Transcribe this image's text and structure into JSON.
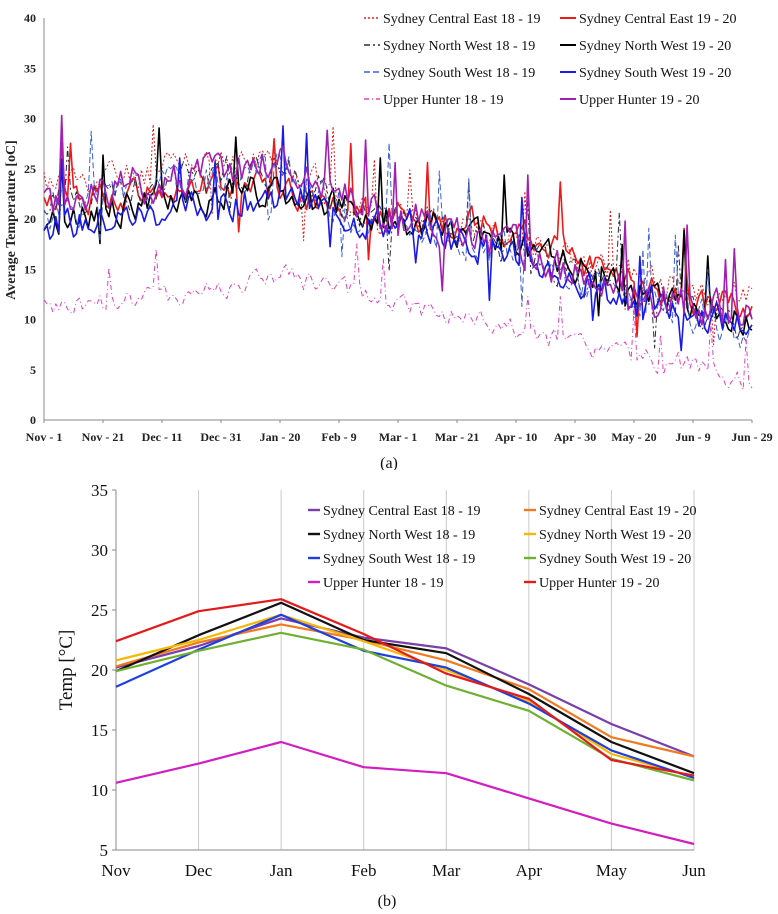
{
  "chart_data": [
    {
      "type": "line",
      "caption": "(a)",
      "ylabel": "Average Temperature [oC]",
      "xlabel": "",
      "ylim": [
        0,
        40
      ],
      "yticks": [
        "0",
        "5",
        "10",
        "15",
        "20",
        "25",
        "30",
        "35",
        "40"
      ],
      "x_tick_labels": [
        "Nov - 1",
        "Nov - 21",
        "Dec - 11",
        "Dec - 31",
        "Jan - 20",
        "Feb - 9",
        "Mar - 1",
        "Mar - 21",
        "Apr - 10",
        "Apr - 30",
        "May - 20",
        "Jun - 9",
        "Jun - 29"
      ],
      "n_days": 241,
      "legend": "top-right",
      "series": [
        {
          "name": "Sydney Central East 18 - 19",
          "color": "#e02020",
          "dash": "2,2",
          "width": 1,
          "trend": [
            [
              0,
              23.5
            ],
            [
              60,
              25.5
            ],
            [
              80,
              26
            ],
            [
              105,
              21
            ],
            [
              130,
              19.5
            ],
            [
              160,
              18.5
            ],
            [
              185,
              15
            ],
            [
              210,
              13.5
            ],
            [
              240,
              12.5
            ]
          ],
          "noise": 2.6,
          "seed": 11
        },
        {
          "name": "Sydney Central East 19 - 20",
          "color": "#ee1a1a",
          "dash": "",
          "width": 1.6,
          "trend": [
            [
              0,
              21.5
            ],
            [
              60,
              23.5
            ],
            [
              80,
              23
            ],
            [
              105,
              21
            ],
            [
              130,
              20
            ],
            [
              160,
              19
            ],
            [
              185,
              15
            ],
            [
              210,
              12.5
            ],
            [
              240,
              11
            ]
          ],
          "noise": 2.4,
          "seed": 12
        },
        {
          "name": "Sydney North West 18 - 19",
          "color": "#2b2b3a",
          "dash": "6,3,2,3",
          "width": 1,
          "trend": [
            [
              0,
              21.5
            ],
            [
              60,
              24.5
            ],
            [
              80,
              25
            ],
            [
              105,
              21
            ],
            [
              130,
              19.5
            ],
            [
              160,
              17
            ],
            [
              185,
              14
            ],
            [
              210,
              12
            ],
            [
              240,
              9.5
            ]
          ],
          "noise": 2.8,
          "seed": 21
        },
        {
          "name": "Sydney North West 19 - 20",
          "color": "#000000",
          "dash": "",
          "width": 1.6,
          "trend": [
            [
              0,
              20
            ],
            [
              60,
              22.5
            ],
            [
              80,
              23
            ],
            [
              105,
              20.5
            ],
            [
              130,
              19.5
            ],
            [
              160,
              17.5
            ],
            [
              185,
              14.5
            ],
            [
              210,
              12
            ],
            [
              240,
              10
            ]
          ],
          "noise": 2.6,
          "seed": 22
        },
        {
          "name": "Sydney South West 18 - 19",
          "color": "#3b5fd9",
          "dash": "6,3",
          "width": 1,
          "trend": [
            [
              0,
              20.5
            ],
            [
              60,
              24.5
            ],
            [
              80,
              25
            ],
            [
              105,
              20.5
            ],
            [
              130,
              19
            ],
            [
              160,
              17
            ],
            [
              185,
              13.5
            ],
            [
              210,
              11
            ],
            [
              240,
              8.5
            ]
          ],
          "noise": 3,
          "seed": 31
        },
        {
          "name": "Sydney South West 19 - 20",
          "color": "#1a1ae6",
          "dash": "",
          "width": 1.6,
          "trend": [
            [
              0,
              19
            ],
            [
              60,
              21.5
            ],
            [
              80,
              22.5
            ],
            [
              105,
              20
            ],
            [
              130,
              19
            ],
            [
              160,
              16.5
            ],
            [
              185,
              13
            ],
            [
              210,
              11
            ],
            [
              240,
              9.5
            ]
          ],
          "noise": 2.7,
          "seed": 32
        },
        {
          "name": "Upper Hunter 18 - 19",
          "color": "#e040c0",
          "dash": "5,3,1,3",
          "width": 1,
          "trend": [
            [
              0,
              11
            ],
            [
              60,
              13
            ],
            [
              80,
              14.5
            ],
            [
              105,
              12.5
            ],
            [
              130,
              11
            ],
            [
              160,
              9
            ],
            [
              185,
              7
            ],
            [
              210,
              6
            ],
            [
              240,
              4
            ]
          ],
          "noise": 1.8,
          "seed": 41
        },
        {
          "name": "Upper Hunter 19 - 20",
          "color": "#a020b0",
          "dash": "",
          "width": 1.6,
          "trend": [
            [
              0,
              21.5
            ],
            [
              60,
              25
            ],
            [
              80,
              26
            ],
            [
              105,
              21.5
            ],
            [
              130,
              19.5
            ],
            [
              160,
              17
            ],
            [
              185,
              13.5
            ],
            [
              210,
              12
            ],
            [
              240,
              10
            ]
          ],
          "noise": 3.2,
          "seed": 42
        }
      ]
    },
    {
      "type": "line",
      "caption": "(b)",
      "ylabel": "Temp [°C]",
      "xlabel": "",
      "ylim": [
        5,
        35
      ],
      "yticks": [
        "5",
        "10",
        "15",
        "20",
        "25",
        "30",
        "35"
      ],
      "categories": [
        "Nov",
        "Dec",
        "Jan",
        "Feb",
        "Mar",
        "Apr",
        "May",
        "Jun"
      ],
      "legend": "top-right",
      "series": [
        {
          "name": "Sydney Central East 18 - 19",
          "color": "#7b3fa8",
          "values": [
            20.2,
            22.0,
            24.3,
            22.7,
            21.8,
            18.8,
            15.5,
            12.8
          ]
        },
        {
          "name": "Sydney Central East 19 - 20",
          "color": "#f07a20",
          "values": [
            20.3,
            22.3,
            23.8,
            22.5,
            20.8,
            18.4,
            14.4,
            12.8
          ]
        },
        {
          "name": "Sydney North West 18 - 19",
          "color": "#111111",
          "values": [
            19.9,
            22.9,
            25.6,
            22.5,
            21.4,
            18.0,
            14.0,
            11.4
          ]
        },
        {
          "name": "Sydney North West 19 - 20",
          "color": "#f5b800",
          "values": [
            20.8,
            22.5,
            24.6,
            22.4,
            20.0,
            17.4,
            13.0,
            11.1
          ]
        },
        {
          "name": "Sydney South West 18 - 19",
          "color": "#1f3fe0",
          "values": [
            18.6,
            21.7,
            24.6,
            21.6,
            20.2,
            17.2,
            13.3,
            11.0
          ]
        },
        {
          "name": "Sydney South West 19 - 20",
          "color": "#6fb030",
          "values": [
            19.9,
            21.6,
            23.1,
            21.7,
            18.7,
            16.6,
            12.6,
            10.8
          ]
        },
        {
          "name": "Upper Hunter 18 - 19",
          "color": "#d21ec0",
          "values": [
            10.6,
            12.2,
            14.0,
            11.9,
            11.4,
            9.3,
            7.2,
            5.5
          ]
        },
        {
          "name": "Upper Hunter 19 - 20",
          "color": "#e41a1a",
          "values": [
            22.4,
            24.9,
            25.9,
            23.0,
            19.7,
            17.6,
            12.5,
            11.2
          ]
        }
      ]
    }
  ]
}
